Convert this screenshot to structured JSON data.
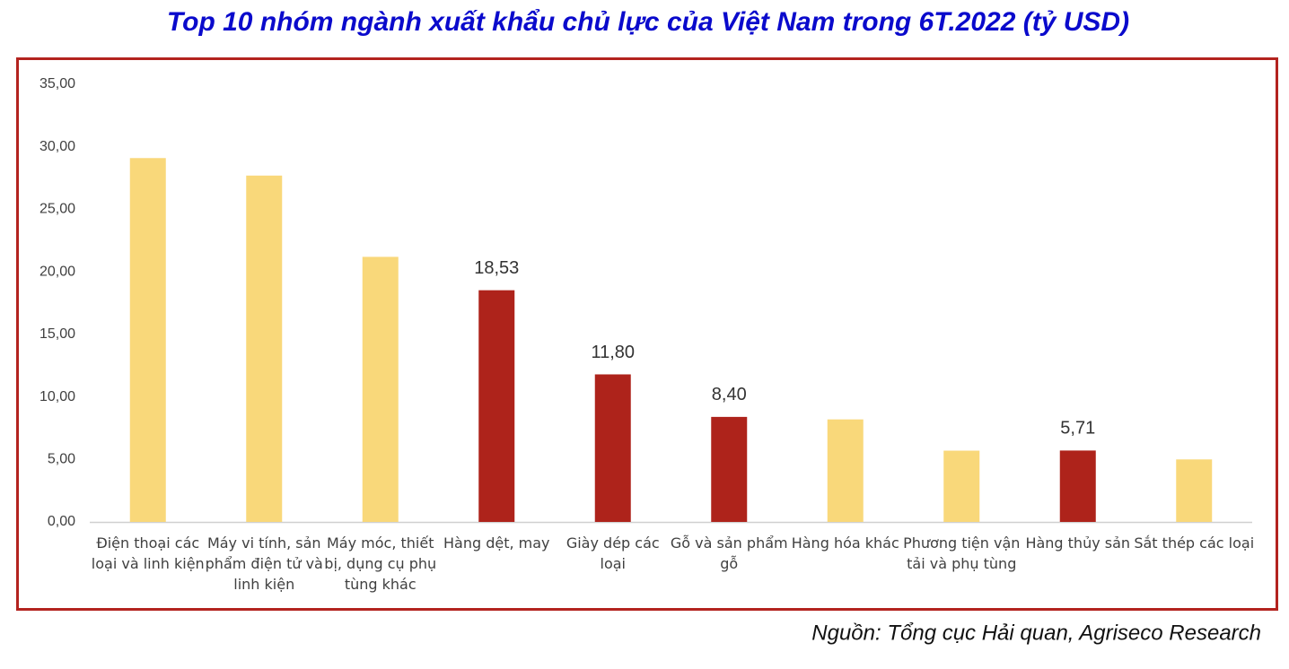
{
  "chart_data": {
    "type": "bar",
    "title": "Top 10 nhóm ngành xuất khẩu chủ lực của Việt Nam trong 6T.2022 (tỷ USD)",
    "source": "Nguồn: Tổng cục Hải quan, Agriseco Research",
    "categories": [
      "Điện thoại các loại và linh kiện",
      "Máy vi tính, sản phẩm điện tử và linh kiện",
      "Máy móc, thiết bị, dụng cụ phụ tùng khác",
      "Hàng dệt, may",
      "Giày dép các loại",
      "Gỗ và sản phẩm gỗ",
      "Hàng hóa khác",
      "Phương tiện vận tải và phụ tùng",
      "Hàng thủy sản",
      "Sắt thép các loại"
    ],
    "values": [
      29.1,
      27.7,
      21.2,
      18.53,
      11.8,
      8.4,
      8.2,
      5.7,
      5.71,
      5.0
    ],
    "value_labels": [
      null,
      null,
      null,
      "18,53",
      "11,80",
      "8,40",
      null,
      null,
      "5,71",
      null
    ],
    "colors": [
      "#f9d87a",
      "#f9d87a",
      "#f9d87a",
      "#ae231b",
      "#ae231b",
      "#ae231b",
      "#f9d87a",
      "#f9d87a",
      "#ae231b",
      "#f9d87a"
    ],
    "ylim": [
      0,
      35
    ],
    "yticks": [
      {
        "value": 0,
        "label": "0,00"
      },
      {
        "value": 5,
        "label": "5,00"
      },
      {
        "value": 10,
        "label": "10,00"
      },
      {
        "value": 15,
        "label": "15,00"
      },
      {
        "value": 20,
        "label": "20,00"
      },
      {
        "value": 25,
        "label": "25,00"
      },
      {
        "value": 30,
        "label": "30,00"
      },
      {
        "value": 35,
        "label": "35,00"
      }
    ],
    "grid": false
  }
}
